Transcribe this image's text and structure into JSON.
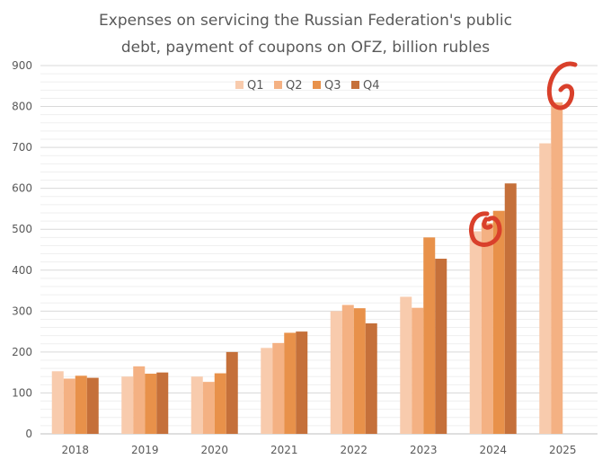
{
  "chart_data": {
    "type": "bar",
    "title_lines": [
      "Expenses on servicing the Russian Federation's public",
      "debt, payment of coupons on OFZ, billion rubles"
    ],
    "categories": [
      "2018",
      "2019",
      "2020",
      "2021",
      "2022",
      "2023",
      "2024",
      "2025"
    ],
    "series": [
      {
        "name": "Q1",
        "color": "#f8cbad",
        "values": [
          153,
          140,
          140,
          210,
          300,
          335,
          495,
          710
        ]
      },
      {
        "name": "Q2",
        "color": "#f4b183",
        "values": [
          135,
          165,
          127,
          222,
          315,
          308,
          515,
          810
        ]
      },
      {
        "name": "Q3",
        "color": "#e8914a",
        "values": [
          142,
          147,
          148,
          247,
          307,
          480,
          545,
          null
        ]
      },
      {
        "name": "Q4",
        "color": "#c5703a",
        "values": [
          137,
          150,
          200,
          250,
          270,
          428,
          612,
          null
        ]
      }
    ],
    "ylim": [
      0,
      900
    ],
    "yticks": [
      0,
      100,
      200,
      300,
      400,
      500,
      600,
      700,
      800,
      900
    ],
    "grid": true,
    "legend_position": "top",
    "annotation_color": "#d9402b"
  }
}
